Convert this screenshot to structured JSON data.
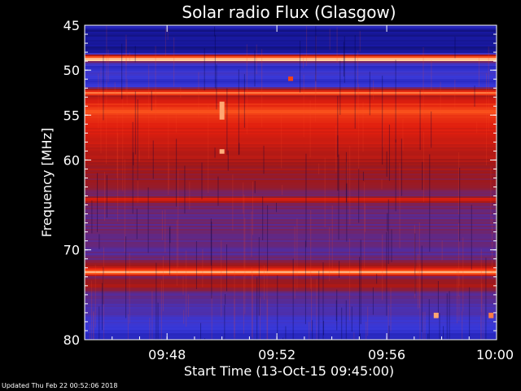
{
  "chart_data": {
    "type": "heatmap",
    "title": "Solar radio Flux (Glasgow)",
    "xlabel": "Start Time (13-Oct-15 09:45:00)",
    "ylabel": "Frequency [MHz]",
    "x_unit": "time (HH:MM)",
    "xlim": [
      "09:45",
      "10:00"
    ],
    "ylim": [
      45,
      80
    ],
    "y_inverted": true,
    "x_ticks": [
      "09:48",
      "09:52",
      "09:56",
      "10:00"
    ],
    "y_ticks": [
      45,
      50,
      55,
      60,
      70,
      80
    ],
    "grid": false,
    "colormap": [
      "#00001a",
      "#1a1aa8",
      "#3838d8",
      "#5a2a90",
      "#a01818",
      "#e01e0e",
      "#ff5a1e",
      "#ffd0a0"
    ],
    "frequency_profile": [
      {
        "mhz": 45.0,
        "level": 0.22
      },
      {
        "mhz": 45.6,
        "level": 0.12
      },
      {
        "mhz": 48.0,
        "level": 0.12
      },
      {
        "mhz": 48.6,
        "level": 0.92
      },
      {
        "mhz": 48.9,
        "level": 0.98
      },
      {
        "mhz": 49.1,
        "level": 0.45
      },
      {
        "mhz": 49.6,
        "level": 0.2
      },
      {
        "mhz": 50.5,
        "level": 0.32
      },
      {
        "mhz": 51.2,
        "level": 0.24
      },
      {
        "mhz": 51.8,
        "level": 0.3
      },
      {
        "mhz": 52.6,
        "level": 0.93
      },
      {
        "mhz": 52.9,
        "level": 0.6
      },
      {
        "mhz": 53.4,
        "level": 0.7
      },
      {
        "mhz": 54.5,
        "level": 0.82
      },
      {
        "mhz": 56.5,
        "level": 0.7
      },
      {
        "mhz": 59.0,
        "level": 0.63
      },
      {
        "mhz": 62.0,
        "level": 0.55
      },
      {
        "mhz": 64.0,
        "level": 0.5
      },
      {
        "mhz": 64.4,
        "level": 0.74
      },
      {
        "mhz": 64.8,
        "level": 0.5
      },
      {
        "mhz": 66.0,
        "level": 0.45
      },
      {
        "mhz": 68.5,
        "level": 0.46
      },
      {
        "mhz": 70.5,
        "level": 0.42
      },
      {
        "mhz": 71.8,
        "level": 0.55
      },
      {
        "mhz": 72.5,
        "level": 0.97
      },
      {
        "mhz": 73.0,
        "level": 0.5
      },
      {
        "mhz": 74.0,
        "level": 0.6
      },
      {
        "mhz": 75.0,
        "level": 0.42
      },
      {
        "mhz": 77.0,
        "level": 0.36
      },
      {
        "mhz": 79.0,
        "level": 0.26
      },
      {
        "mhz": 80.0,
        "level": 0.2
      }
    ],
    "bursts": [
      {
        "time": "09:50",
        "mhz_from": 53.5,
        "mhz_to": 55.5,
        "level": 0.95
      },
      {
        "time": "09:50",
        "mhz_from": 58.8,
        "mhz_to": 59.3,
        "level": 0.96
      },
      {
        "time": "09:52:30",
        "mhz_from": 50.7,
        "mhz_to": 51.2,
        "level": 0.8
      },
      {
        "time": "09:57:48",
        "mhz_from": 77.0,
        "mhz_to": 77.6,
        "level": 0.95
      },
      {
        "time": "09:59:48",
        "mhz_from": 77.0,
        "mhz_to": 77.6,
        "level": 0.9
      }
    ]
  },
  "footer": {
    "updated_text": "Updated Thu Feb 22 00:52:06 2018"
  }
}
